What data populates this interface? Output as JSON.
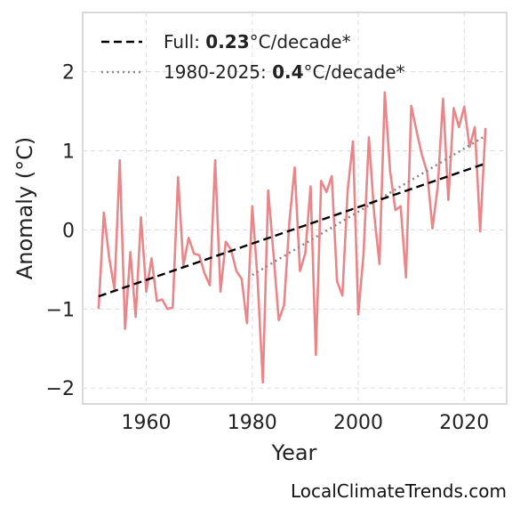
{
  "chart_data": {
    "type": "line",
    "xlabel": "Year",
    "ylabel": "Anomaly (°C)",
    "xlim": [
      1948,
      2028
    ],
    "ylim": [
      -2.2,
      2.75
    ],
    "xticks": [
      1960,
      1980,
      2000,
      2020
    ],
    "yticks": [
      -2,
      -1,
      0,
      1,
      2
    ],
    "ytick_labels": [
      "−2",
      "−1",
      "0",
      "1",
      "2"
    ],
    "grid": true,
    "legend_position": "top-left",
    "colors": {
      "series": "#e8868a",
      "full_trend": "#000000",
      "recent_trend": "#888888"
    },
    "series": [
      {
        "x": [
          1951,
          1952,
          1953,
          1954,
          1955,
          1956,
          1957,
          1958,
          1959,
          1960,
          1961,
          1962,
          1963,
          1964,
          1965,
          1966,
          1967,
          1968,
          1969,
          1970,
          1971,
          1972,
          1973,
          1974,
          1975,
          1976,
          1977,
          1978,
          1979,
          1980,
          1981,
          1982,
          1983,
          1984,
          1985,
          1986,
          1987,
          1988,
          1989,
          1990,
          1991,
          1992,
          1993,
          1994,
          1995,
          1996,
          1997,
          1998,
          1999,
          2000,
          2001,
          2002,
          2003,
          2004,
          2005,
          2006,
          2007,
          2008,
          2009,
          2010,
          2011,
          2012,
          2013,
          2014,
          2015,
          2016,
          2017,
          2018,
          2019,
          2020,
          2021,
          2022,
          2023,
          2024
        ],
        "y": [
          -1.0,
          0.22,
          -0.35,
          -0.75,
          0.88,
          -1.25,
          -0.28,
          -1.1,
          0.16,
          -0.78,
          -0.36,
          -0.9,
          -0.88,
          -1.0,
          -0.98,
          0.67,
          -0.45,
          -0.1,
          -0.3,
          -0.32,
          -0.55,
          -0.7,
          0.88,
          -0.78,
          -0.15,
          -0.25,
          -0.52,
          -0.62,
          -1.18,
          0.3,
          -0.62,
          -1.93,
          0.5,
          -0.3,
          -1.14,
          -0.95,
          0.1,
          0.79,
          -0.52,
          -0.3,
          0.55,
          -1.58,
          0.62,
          0.48,
          0.68,
          -0.65,
          -0.83,
          0.5,
          1.12,
          -1.07,
          -0.3,
          1.17,
          0.2,
          -0.43,
          1.74,
          0.75,
          0.25,
          0.3,
          -0.6,
          1.57,
          1.25,
          0.95,
          0.73,
          0.02,
          0.55,
          1.66,
          0.38,
          1.54,
          1.3,
          1.56,
          1.05,
          1.3,
          -0.02,
          1.29
        ]
      }
    ],
    "trends": [
      {
        "label": "Full",
        "rate": "0.23",
        "unit": "°C/decade*",
        "x": [
          1951,
          2024
        ],
        "y": [
          -0.84,
          0.84
        ]
      },
      {
        "label": "1980-2025",
        "rate": "0.4",
        "unit": "°C/decade*",
        "x": [
          1980,
          2024
        ],
        "y": [
          -0.57,
          1.19
        ]
      }
    ]
  },
  "legend": {
    "full_prefix": "Full: ",
    "full_rate": "0.23",
    "full_unit": "°C/decade*",
    "recent_prefix": "1980-2025: ",
    "recent_rate": "0.4",
    "recent_unit": "°C/decade*"
  },
  "watermark": "LocalClimateTrends.com"
}
